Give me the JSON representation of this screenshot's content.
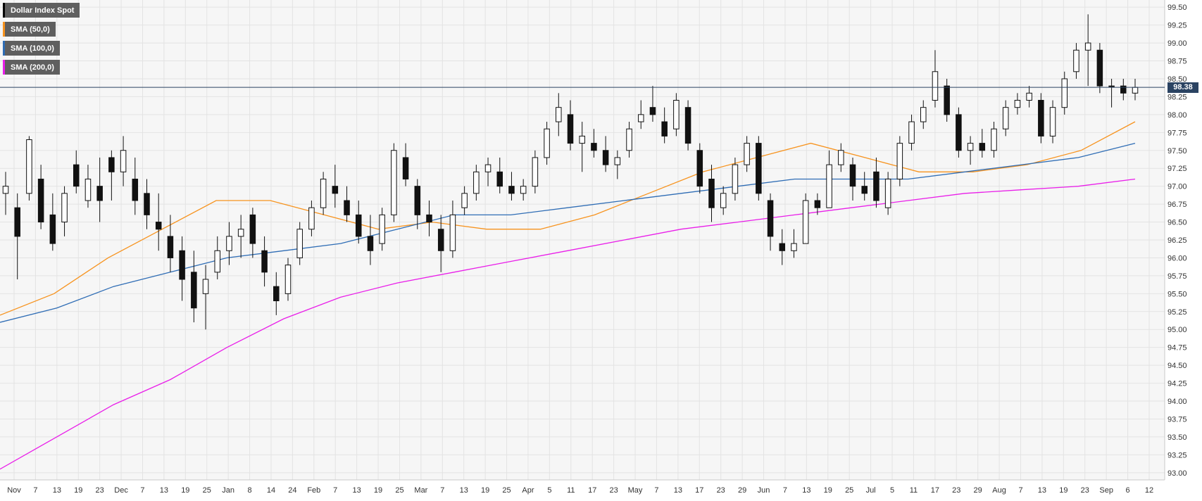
{
  "chart_data": {
    "type": "candlestick",
    "y_axis": {
      "range": [
        92.9,
        99.6
      ],
      "ticks": [
        "93.00",
        "93.25",
        "93.50",
        "93.75",
        "94.00",
        "94.25",
        "94.50",
        "94.75",
        "95.00",
        "95.25",
        "95.50",
        "95.75",
        "96.00",
        "96.25",
        "96.50",
        "96.75",
        "97.00",
        "97.25",
        "97.50",
        "97.75",
        "98.00",
        "98.25",
        "98.50",
        "98.75",
        "99.00",
        "99.25",
        "99.50"
      ]
    },
    "x_axis": {
      "ticks": [
        "Nov",
        "7",
        "13",
        "19",
        "23",
        "Dec",
        "7",
        "13",
        "19",
        "25",
        "Jan",
        "8",
        "14",
        "24",
        "Feb",
        "7",
        "13",
        "19",
        "25",
        "Mar",
        "7",
        "13",
        "19",
        "25",
        "Apr",
        "5",
        "11",
        "17",
        "23",
        "May",
        "7",
        "13",
        "17",
        "23",
        "29",
        "Jun",
        "7",
        "13",
        "19",
        "25",
        "Jul",
        "5",
        "11",
        "17",
        "23",
        "29",
        "Aug",
        "7",
        "13",
        "19",
        "23",
        "Sep",
        "6",
        "12"
      ]
    },
    "legend": [
      {
        "label": "Dollar Index Spot",
        "color": "#000000"
      },
      {
        "label": "SMA (50,0)",
        "color": "#f7931e"
      },
      {
        "label": "SMA (100,0)",
        "color": "#2f6db5"
      },
      {
        "label": "SMA (200,0)",
        "color": "#e91ee9"
      }
    ],
    "current_price": {
      "label": "98.38",
      "value": 98.38
    },
    "grid": true,
    "series": [
      {
        "name": "Dollar Index Spot",
        "kind": "ohlc",
        "points": [
          {
            "x": "Nov 1",
            "o": 96.9,
            "h": 97.2,
            "l": 96.6,
            "c": 97.0
          },
          {
            "x": "Nov 7",
            "o": 96.7,
            "h": 96.9,
            "l": 95.7,
            "c": 96.3
          },
          {
            "x": "Nov 13",
            "o": 96.9,
            "h": 97.7,
            "l": 96.8,
            "c": 97.65
          },
          {
            "x": "Nov 16",
            "o": 97.1,
            "h": 97.3,
            "l": 96.4,
            "c": 96.5
          },
          {
            "x": "Nov 19",
            "o": 96.6,
            "h": 96.9,
            "l": 96.1,
            "c": 96.2
          },
          {
            "x": "Nov 23",
            "o": 96.5,
            "h": 97.0,
            "l": 96.3,
            "c": 96.9
          },
          {
            "x": "Nov 28",
            "o": 97.3,
            "h": 97.5,
            "l": 96.9,
            "c": 97.0
          },
          {
            "x": "Dec 3",
            "o": 96.8,
            "h": 97.3,
            "l": 96.7,
            "c": 97.1
          },
          {
            "x": "Dec 7",
            "o": 97.0,
            "h": 97.4,
            "l": 96.5,
            "c": 96.8
          },
          {
            "x": "Dec 10",
            "o": 97.4,
            "h": 97.5,
            "l": 96.8,
            "c": 97.2
          },
          {
            "x": "Dec 13",
            "o": 97.2,
            "h": 97.7,
            "l": 97.0,
            "c": 97.5
          },
          {
            "x": "Dec 17",
            "o": 97.1,
            "h": 97.4,
            "l": 96.6,
            "c": 96.8
          },
          {
            "x": "Dec 21",
            "o": 96.9,
            "h": 97.1,
            "l": 96.4,
            "c": 96.6
          },
          {
            "x": "Dec 26",
            "o": 96.5,
            "h": 96.9,
            "l": 96.1,
            "c": 96.4
          },
          {
            "x": "Dec 31",
            "o": 96.3,
            "h": 96.6,
            "l": 95.8,
            "c": 96.0
          },
          {
            "x": "Jan 4",
            "o": 96.1,
            "h": 96.3,
            "l": 95.4,
            "c": 95.7
          },
          {
            "x": "Jan 8",
            "o": 95.8,
            "h": 96.1,
            "l": 95.1,
            "c": 95.3
          },
          {
            "x": "Jan 11",
            "o": 95.5,
            "h": 95.9,
            "l": 95.0,
            "c": 95.7
          },
          {
            "x": "Jan 14",
            "o": 95.8,
            "h": 96.3,
            "l": 95.7,
            "c": 96.1
          },
          {
            "x": "Jan 18",
            "o": 96.1,
            "h": 96.5,
            "l": 95.9,
            "c": 96.3
          },
          {
            "x": "Jan 22",
            "o": 96.3,
            "h": 96.6,
            "l": 96.0,
            "c": 96.4
          },
          {
            "x": "Jan 24",
            "o": 96.6,
            "h": 96.7,
            "l": 96.0,
            "c": 96.2
          },
          {
            "x": "Jan 28",
            "o": 96.1,
            "h": 96.3,
            "l": 95.6,
            "c": 95.8
          },
          {
            "x": "Jan 31",
            "o": 95.6,
            "h": 95.8,
            "l": 95.2,
            "c": 95.4
          },
          {
            "x": "Feb 4",
            "o": 95.5,
            "h": 96.0,
            "l": 95.4,
            "c": 95.9
          },
          {
            "x": "Feb 7",
            "o": 96.0,
            "h": 96.5,
            "l": 95.9,
            "c": 96.4
          },
          {
            "x": "Feb 11",
            "o": 96.4,
            "h": 96.8,
            "l": 96.3,
            "c": 96.7
          },
          {
            "x": "Feb 14",
            "o": 96.7,
            "h": 97.2,
            "l": 96.6,
            "c": 97.1
          },
          {
            "x": "Feb 18",
            "o": 97.0,
            "h": 97.3,
            "l": 96.7,
            "c": 96.9
          },
          {
            "x": "Feb 21",
            "o": 96.8,
            "h": 97.0,
            "l": 96.5,
            "c": 96.6
          },
          {
            "x": "Feb 25",
            "o": 96.6,
            "h": 96.8,
            "l": 96.2,
            "c": 96.3
          },
          {
            "x": "Mar 1",
            "o": 96.3,
            "h": 96.6,
            "l": 95.9,
            "c": 96.1
          },
          {
            "x": "Mar 4",
            "o": 96.2,
            "h": 96.7,
            "l": 96.1,
            "c": 96.6
          },
          {
            "x": "Mar 7",
            "o": 96.6,
            "h": 97.6,
            "l": 96.5,
            "c": 97.5
          },
          {
            "x": "Mar 11",
            "o": 97.4,
            "h": 97.6,
            "l": 97.0,
            "c": 97.1
          },
          {
            "x": "Mar 14",
            "o": 97.0,
            "h": 97.1,
            "l": 96.4,
            "c": 96.6
          },
          {
            "x": "Mar 18",
            "o": 96.6,
            "h": 96.8,
            "l": 96.3,
            "c": 96.5
          },
          {
            "x": "Mar 21",
            "o": 96.4,
            "h": 96.6,
            "l": 95.8,
            "c": 96.1
          },
          {
            "x": "Mar 25",
            "o": 96.1,
            "h": 96.8,
            "l": 96.0,
            "c": 96.6
          },
          {
            "x": "Mar 28",
            "o": 96.7,
            "h": 97.0,
            "l": 96.6,
            "c": 96.9
          },
          {
            "x": "Apr 2",
            "o": 96.9,
            "h": 97.3,
            "l": 96.8,
            "c": 97.2
          },
          {
            "x": "Apr 5",
            "o": 97.2,
            "h": 97.4,
            "l": 97.0,
            "c": 97.3
          },
          {
            "x": "Apr 9",
            "o": 97.2,
            "h": 97.4,
            "l": 96.9,
            "c": 97.0
          },
          {
            "x": "Apr 12",
            "o": 97.0,
            "h": 97.2,
            "l": 96.8,
            "c": 96.9
          },
          {
            "x": "Apr 16",
            "o": 96.9,
            "h": 97.1,
            "l": 96.8,
            "c": 97.0
          },
          {
            "x": "Apr 19",
            "o": 97.0,
            "h": 97.5,
            "l": 96.9,
            "c": 97.4
          },
          {
            "x": "Apr 23",
            "o": 97.4,
            "h": 97.9,
            "l": 97.3,
            "c": 97.8
          },
          {
            "x": "Apr 26",
            "o": 97.9,
            "h": 98.3,
            "l": 97.7,
            "c": 98.1
          },
          {
            "x": "Apr 30",
            "o": 98.0,
            "h": 98.2,
            "l": 97.5,
            "c": 97.6
          },
          {
            "x": "May 3",
            "o": 97.6,
            "h": 97.9,
            "l": 97.2,
            "c": 97.7
          },
          {
            "x": "May 7",
            "o": 97.6,
            "h": 97.8,
            "l": 97.4,
            "c": 97.5
          },
          {
            "x": "May 10",
            "o": 97.5,
            "h": 97.7,
            "l": 97.2,
            "c": 97.3
          },
          {
            "x": "May 13",
            "o": 97.3,
            "h": 97.5,
            "l": 97.1,
            "c": 97.4
          },
          {
            "x": "May 16",
            "o": 97.5,
            "h": 97.9,
            "l": 97.4,
            "c": 97.8
          },
          {
            "x": "May 20",
            "o": 97.9,
            "h": 98.2,
            "l": 97.8,
            "c": 98.0
          },
          {
            "x": "May 23",
            "o": 98.1,
            "h": 98.4,
            "l": 97.9,
            "c": 98.0
          },
          {
            "x": "May 27",
            "o": 97.9,
            "h": 98.1,
            "l": 97.6,
            "c": 97.7
          },
          {
            "x": "May 30",
            "o": 97.8,
            "h": 98.3,
            "l": 97.7,
            "c": 98.2
          },
          {
            "x": "Jun 3",
            "o": 98.1,
            "h": 98.2,
            "l": 97.5,
            "c": 97.6
          },
          {
            "x": "Jun 5",
            "o": 97.5,
            "h": 97.6,
            "l": 96.9,
            "c": 97.0
          },
          {
            "x": "Jun 7",
            "o": 97.1,
            "h": 97.3,
            "l": 96.5,
            "c": 96.7
          },
          {
            "x": "Jun 11",
            "o": 96.7,
            "h": 97.0,
            "l": 96.6,
            "c": 96.9
          },
          {
            "x": "Jun 14",
            "o": 96.9,
            "h": 97.4,
            "l": 96.8,
            "c": 97.3
          },
          {
            "x": "Jun 18",
            "o": 97.3,
            "h": 97.7,
            "l": 97.2,
            "c": 97.6
          },
          {
            "x": "Jun 20",
            "o": 97.6,
            "h": 97.7,
            "l": 96.8,
            "c": 96.9
          },
          {
            "x": "Jun 24",
            "o": 96.8,
            "h": 96.9,
            "l": 96.1,
            "c": 96.3
          },
          {
            "x": "Jun 26",
            "o": 96.2,
            "h": 96.4,
            "l": 95.9,
            "c": 96.1
          },
          {
            "x": "Jun 28",
            "o": 96.1,
            "h": 96.4,
            "l": 96.0,
            "c": 96.2
          },
          {
            "x": "Jul 1",
            "o": 96.2,
            "h": 96.9,
            "l": 96.2,
            "c": 96.8
          },
          {
            "x": "Jul 3",
            "o": 96.8,
            "h": 96.9,
            "l": 96.6,
            "c": 96.7
          },
          {
            "x": "Jul 5",
            "o": 96.7,
            "h": 97.5,
            "l": 96.7,
            "c": 97.3
          },
          {
            "x": "Jul 9",
            "o": 97.3,
            "h": 97.6,
            "l": 97.2,
            "c": 97.5
          },
          {
            "x": "Jul 11",
            "o": 97.3,
            "h": 97.4,
            "l": 96.8,
            "c": 97.0
          },
          {
            "x": "Jul 15",
            "o": 97.0,
            "h": 97.2,
            "l": 96.8,
            "c": 96.9
          },
          {
            "x": "Jul 17",
            "o": 97.2,
            "h": 97.4,
            "l": 96.7,
            "c": 96.8
          },
          {
            "x": "Jul 19",
            "o": 96.7,
            "h": 97.2,
            "l": 96.6,
            "c": 97.1
          },
          {
            "x": "Jul 23",
            "o": 97.1,
            "h": 97.7,
            "l": 97.0,
            "c": 97.6
          },
          {
            "x": "Jul 26",
            "o": 97.6,
            "h": 98.0,
            "l": 97.5,
            "c": 97.9
          },
          {
            "x": "Jul 29",
            "o": 97.9,
            "h": 98.2,
            "l": 97.8,
            "c": 98.1
          },
          {
            "x": "Jul 31",
            "o": 98.2,
            "h": 98.9,
            "l": 98.1,
            "c": 98.6
          },
          {
            "x": "Aug 1",
            "o": 98.4,
            "h": 98.5,
            "l": 97.9,
            "c": 98.0
          },
          {
            "x": "Aug 5",
            "o": 98.0,
            "h": 98.1,
            "l": 97.4,
            "c": 97.5
          },
          {
            "x": "Aug 7",
            "o": 97.5,
            "h": 97.7,
            "l": 97.3,
            "c": 97.6
          },
          {
            "x": "Aug 9",
            "o": 97.6,
            "h": 97.8,
            "l": 97.4,
            "c": 97.5
          },
          {
            "x": "Aug 13",
            "o": 97.5,
            "h": 97.9,
            "l": 97.4,
            "c": 97.8
          },
          {
            "x": "Aug 15",
            "o": 97.8,
            "h": 98.2,
            "l": 97.7,
            "c": 98.1
          },
          {
            "x": "Aug 19",
            "o": 98.1,
            "h": 98.3,
            "l": 98.0,
            "c": 98.2
          },
          {
            "x": "Aug 21",
            "o": 98.2,
            "h": 98.4,
            "l": 98.1,
            "c": 98.3
          },
          {
            "x": "Aug 23",
            "o": 98.2,
            "h": 98.3,
            "l": 97.6,
            "c": 97.7
          },
          {
            "x": "Aug 27",
            "o": 97.7,
            "h": 98.2,
            "l": 97.6,
            "c": 98.1
          },
          {
            "x": "Aug 29",
            "o": 98.1,
            "h": 98.6,
            "l": 98.0,
            "c": 98.5
          },
          {
            "x": "Sep 2",
            "o": 98.6,
            "h": 99.0,
            "l": 98.5,
            "c": 98.9
          },
          {
            "x": "Sep 3",
            "o": 98.9,
            "h": 99.4,
            "l": 98.4,
            "c": 99.0
          },
          {
            "x": "Sep 4",
            "o": 98.9,
            "h": 99.0,
            "l": 98.3,
            "c": 98.4
          },
          {
            "x": "Sep 6",
            "o": 98.4,
            "h": 98.5,
            "l": 98.1,
            "c": 98.4
          },
          {
            "x": "Sep 9",
            "o": 98.4,
            "h": 98.5,
            "l": 98.2,
            "c": 98.3
          },
          {
            "x": "Sep 10",
            "o": 98.3,
            "h": 98.5,
            "l": 98.2,
            "c": 98.38
          }
        ]
      },
      {
        "name": "SMA (50,0)",
        "kind": "line",
        "color": "#f7931e",
        "values": [
          95.2,
          95.5,
          96.0,
          96.4,
          96.8,
          96.8,
          96.6,
          96.4,
          96.5,
          96.4,
          96.4,
          96.6,
          96.9,
          97.2,
          97.4,
          97.6,
          97.4,
          97.2,
          97.2,
          97.3,
          97.5,
          97.9
        ]
      },
      {
        "name": "SMA (100,0)",
        "kind": "line",
        "color": "#2f6db5",
        "values": [
          95.1,
          95.3,
          95.6,
          95.8,
          96.0,
          96.1,
          96.2,
          96.4,
          96.6,
          96.6,
          96.7,
          96.8,
          96.9,
          97.0,
          97.1,
          97.1,
          97.1,
          97.2,
          97.3,
          97.4,
          97.6
        ]
      },
      {
        "name": "SMA (200,0)",
        "kind": "line",
        "color": "#e91ee9",
        "values": [
          93.05,
          93.5,
          93.95,
          94.3,
          94.75,
          95.15,
          95.45,
          95.65,
          95.8,
          95.95,
          96.1,
          96.25,
          96.4,
          96.5,
          96.6,
          96.7,
          96.8,
          96.9,
          96.95,
          97.0,
          97.1
        ]
      }
    ]
  }
}
